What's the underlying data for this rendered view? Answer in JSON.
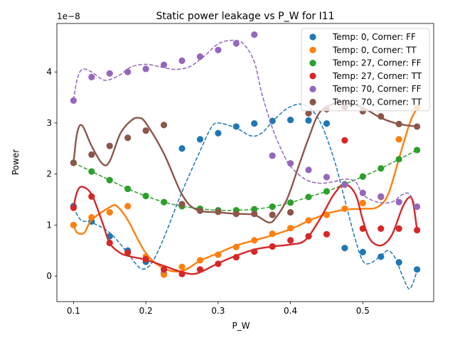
{
  "chart_data": {
    "type": "scatter",
    "title": "Static power leakage vs P_W for I11",
    "xlabel": "P_W",
    "ylabel": "Power",
    "y_multiplier_label": "1e−8",
    "xlim": [
      0.077,
      0.598
    ],
    "ylim": [
      -0.5,
      4.95
    ],
    "x_ticks": [
      0.1,
      0.2,
      0.3,
      0.4,
      0.5
    ],
    "x_tick_labels": [
      "0.1",
      "0.2",
      "0.3",
      "0.4",
      "0.5"
    ],
    "y_ticks": [
      0,
      1,
      2,
      3,
      4
    ],
    "y_tick_labels": [
      "0",
      "1",
      "2",
      "3",
      "4"
    ],
    "legend_position": "upper right",
    "grid": false,
    "series": [
      {
        "name": "Temp: 0, Corner: FF",
        "color": "#1f77b4",
        "line_style": "dashed",
        "x": [
          0.1,
          0.125,
          0.15,
          0.175,
          0.2,
          0.225,
          0.25,
          0.275,
          0.3,
          0.325,
          0.35,
          0.375,
          0.4,
          0.425,
          0.45,
          0.475,
          0.5,
          0.525,
          0.55,
          0.575
        ],
        "y": [
          1.37,
          1.07,
          0.78,
          0.5,
          0.28,
          0.05,
          2.5,
          2.68,
          2.8,
          2.93,
          2.99,
          3.04,
          3.06,
          3.05,
          2.99,
          0.55,
          0.47,
          0.38,
          0.27,
          0.13
        ],
        "curve": [
          [
            0.1,
            1.35
          ],
          [
            0.11,
            1.1
          ],
          [
            0.125,
            1.05
          ],
          [
            0.15,
            0.85
          ],
          [
            0.175,
            0.45
          ],
          [
            0.19,
            0.18
          ],
          [
            0.2,
            0.15
          ],
          [
            0.21,
            0.3
          ],
          [
            0.225,
            0.75
          ],
          [
            0.25,
            1.65
          ],
          [
            0.275,
            2.45
          ],
          [
            0.29,
            2.9
          ],
          [
            0.3,
            3.0
          ],
          [
            0.325,
            2.9
          ],
          [
            0.345,
            2.75
          ],
          [
            0.36,
            2.8
          ],
          [
            0.38,
            3.1
          ],
          [
            0.4,
            3.32
          ],
          [
            0.42,
            3.35
          ],
          [
            0.44,
            3.05
          ],
          [
            0.46,
            2.3
          ],
          [
            0.475,
            1.5
          ],
          [
            0.49,
            0.7
          ],
          [
            0.5,
            0.3
          ],
          [
            0.51,
            0.25
          ],
          [
            0.525,
            0.4
          ],
          [
            0.535,
            0.5
          ],
          [
            0.545,
            0.35
          ],
          [
            0.555,
            0.0
          ],
          [
            0.565,
            -0.25
          ],
          [
            0.575,
            0.1
          ]
        ]
      },
      {
        "name": "Temp: 0, Corner: TT",
        "color": "#ff7f0e",
        "line_style": "solid",
        "x": [
          0.1,
          0.125,
          0.15,
          0.175,
          0.2,
          0.225,
          0.25,
          0.275,
          0.3,
          0.325,
          0.35,
          0.375,
          0.4,
          0.425,
          0.45,
          0.475,
          0.5,
          0.525,
          0.55,
          0.575
        ],
        "y": [
          1.0,
          1.15,
          1.25,
          1.37,
          0.38,
          0.03,
          0.18,
          0.31,
          0.42,
          0.57,
          0.7,
          0.83,
          0.94,
          1.09,
          1.2,
          1.32,
          1.43,
          1.55,
          2.68,
          3.3
        ],
        "curve": [
          [
            0.1,
            1.0
          ],
          [
            0.105,
            0.85
          ],
          [
            0.115,
            0.85
          ],
          [
            0.125,
            1.1
          ],
          [
            0.15,
            1.35
          ],
          [
            0.16,
            1.37
          ],
          [
            0.175,
            1.1
          ],
          [
            0.2,
            0.45
          ],
          [
            0.225,
            0.15
          ],
          [
            0.25,
            0.1
          ],
          [
            0.275,
            0.3
          ],
          [
            0.3,
            0.45
          ],
          [
            0.325,
            0.6
          ],
          [
            0.35,
            0.7
          ],
          [
            0.375,
            0.8
          ],
          [
            0.4,
            0.92
          ],
          [
            0.425,
            1.08
          ],
          [
            0.45,
            1.22
          ],
          [
            0.475,
            1.3
          ],
          [
            0.5,
            1.32
          ],
          [
            0.52,
            1.35
          ],
          [
            0.535,
            1.6
          ],
          [
            0.55,
            2.3
          ],
          [
            0.565,
            3.0
          ],
          [
            0.575,
            3.3
          ]
        ]
      },
      {
        "name": "Temp: 27, Corner: FF",
        "color": "#2ca02c",
        "line_style": "dashed",
        "x": [
          0.1,
          0.125,
          0.15,
          0.175,
          0.2,
          0.225,
          0.25,
          0.275,
          0.3,
          0.325,
          0.35,
          0.375,
          0.4,
          0.425,
          0.45,
          0.475,
          0.5,
          0.525,
          0.55,
          0.575
        ],
        "y": [
          2.22,
          2.05,
          1.88,
          1.71,
          1.57,
          1.45,
          1.37,
          1.32,
          1.29,
          1.29,
          1.31,
          1.36,
          1.44,
          1.55,
          1.66,
          1.8,
          1.95,
          2.11,
          2.29,
          2.47
        ],
        "curve": [
          [
            0.1,
            2.22
          ],
          [
            0.125,
            2.05
          ],
          [
            0.15,
            1.88
          ],
          [
            0.175,
            1.71
          ],
          [
            0.2,
            1.57
          ],
          [
            0.225,
            1.45
          ],
          [
            0.25,
            1.37
          ],
          [
            0.275,
            1.32
          ],
          [
            0.3,
            1.29
          ],
          [
            0.325,
            1.29
          ],
          [
            0.35,
            1.31
          ],
          [
            0.375,
            1.36
          ],
          [
            0.4,
            1.44
          ],
          [
            0.425,
            1.55
          ],
          [
            0.45,
            1.66
          ],
          [
            0.475,
            1.8
          ],
          [
            0.5,
            1.95
          ],
          [
            0.525,
            2.11
          ],
          [
            0.55,
            2.29
          ],
          [
            0.575,
            2.47
          ]
        ]
      },
      {
        "name": "Temp: 27, Corner: TT",
        "color": "#d62728",
        "line_style": "solid",
        "x": [
          0.1,
          0.125,
          0.15,
          0.175,
          0.2,
          0.225,
          0.25,
          0.275,
          0.3,
          0.325,
          0.35,
          0.375,
          0.4,
          0.425,
          0.45,
          0.475,
          0.5,
          0.525,
          0.55,
          0.575
        ],
        "y": [
          1.34,
          1.56,
          0.65,
          0.46,
          0.33,
          0.13,
          0.04,
          0.13,
          0.24,
          0.37,
          0.48,
          0.58,
          0.7,
          0.78,
          0.82,
          2.66,
          0.93,
          0.93,
          0.93,
          0.9
        ],
        "curve": [
          [
            0.1,
            1.35
          ],
          [
            0.105,
            1.65
          ],
          [
            0.112,
            1.75
          ],
          [
            0.125,
            1.6
          ],
          [
            0.14,
            1.05
          ],
          [
            0.15,
            0.65
          ],
          [
            0.165,
            0.45
          ],
          [
            0.18,
            0.38
          ],
          [
            0.2,
            0.32
          ],
          [
            0.225,
            0.2
          ],
          [
            0.25,
            0.08
          ],
          [
            0.27,
            0.05
          ],
          [
            0.3,
            0.25
          ],
          [
            0.325,
            0.4
          ],
          [
            0.35,
            0.52
          ],
          [
            0.375,
            0.58
          ],
          [
            0.4,
            0.62
          ],
          [
            0.42,
            0.7
          ],
          [
            0.44,
            1.1
          ],
          [
            0.46,
            1.6
          ],
          [
            0.475,
            1.8
          ],
          [
            0.49,
            1.6
          ],
          [
            0.5,
            1.1
          ],
          [
            0.51,
            0.72
          ],
          [
            0.525,
            0.6
          ],
          [
            0.54,
            0.8
          ],
          [
            0.555,
            1.35
          ],
          [
            0.565,
            1.55
          ],
          [
            0.57,
            1.4
          ],
          [
            0.575,
            0.9
          ]
        ]
      },
      {
        "name": "Temp: 70, Corner: FF",
        "color": "#9467bd",
        "line_style": "dashed",
        "x": [
          0.1,
          0.125,
          0.15,
          0.175,
          0.2,
          0.225,
          0.25,
          0.275,
          0.3,
          0.325,
          0.35,
          0.375,
          0.4,
          0.425,
          0.45,
          0.475,
          0.5,
          0.525,
          0.55,
          0.575
        ],
        "y": [
          3.44,
          3.9,
          3.97,
          4.0,
          4.06,
          4.14,
          4.22,
          4.3,
          4.43,
          4.56,
          4.73,
          2.36,
          2.21,
          2.08,
          1.94,
          1.79,
          1.63,
          1.56,
          1.45,
          1.36
        ],
        "curve": [
          [
            0.1,
            3.45
          ],
          [
            0.105,
            3.85
          ],
          [
            0.112,
            4.05
          ],
          [
            0.125,
            4.0
          ],
          [
            0.14,
            3.85
          ],
          [
            0.15,
            3.85
          ],
          [
            0.165,
            3.95
          ],
          [
            0.18,
            4.1
          ],
          [
            0.2,
            4.15
          ],
          [
            0.22,
            4.1
          ],
          [
            0.24,
            4.05
          ],
          [
            0.26,
            4.1
          ],
          [
            0.28,
            4.3
          ],
          [
            0.3,
            4.55
          ],
          [
            0.32,
            4.62
          ],
          [
            0.335,
            4.55
          ],
          [
            0.35,
            4.2
          ],
          [
            0.36,
            3.6
          ],
          [
            0.375,
            2.9
          ],
          [
            0.39,
            2.4
          ],
          [
            0.4,
            2.15
          ],
          [
            0.42,
            1.9
          ],
          [
            0.44,
            1.82
          ],
          [
            0.46,
            1.85
          ],
          [
            0.475,
            1.9
          ],
          [
            0.49,
            1.85
          ],
          [
            0.5,
            1.6
          ],
          [
            0.52,
            1.45
          ],
          [
            0.54,
            1.45
          ],
          [
            0.555,
            1.6
          ],
          [
            0.565,
            1.6
          ],
          [
            0.575,
            1.3
          ]
        ]
      },
      {
        "name": "Temp: 70, Corner: TT",
        "color": "#8c564b",
        "line_style": "solid",
        "x": [
          0.1,
          0.125,
          0.15,
          0.175,
          0.2,
          0.225,
          0.25,
          0.275,
          0.3,
          0.325,
          0.35,
          0.375,
          0.4,
          0.425,
          0.45,
          0.475,
          0.5,
          0.525,
          0.55,
          0.575
        ],
        "y": [
          2.22,
          2.38,
          2.55,
          2.71,
          2.85,
          2.96,
          1.41,
          1.28,
          1.26,
          1.22,
          1.22,
          1.2,
          1.25,
          3.19,
          3.27,
          3.31,
          3.23,
          3.13,
          2.98,
          2.93
        ],
        "curve": [
          [
            0.1,
            2.22
          ],
          [
            0.105,
            2.8
          ],
          [
            0.112,
            2.95
          ],
          [
            0.125,
            2.55
          ],
          [
            0.14,
            2.2
          ],
          [
            0.15,
            2.25
          ],
          [
            0.165,
            2.8
          ],
          [
            0.18,
            3.05
          ],
          [
            0.19,
            3.1
          ],
          [
            0.2,
            3.0
          ],
          [
            0.225,
            2.4
          ],
          [
            0.25,
            1.6
          ],
          [
            0.27,
            1.3
          ],
          [
            0.3,
            1.25
          ],
          [
            0.325,
            1.22
          ],
          [
            0.35,
            1.2
          ],
          [
            0.37,
            1.05
          ],
          [
            0.38,
            1.15
          ],
          [
            0.395,
            1.5
          ],
          [
            0.41,
            2.1
          ],
          [
            0.425,
            2.7
          ],
          [
            0.44,
            3.2
          ],
          [
            0.46,
            3.38
          ],
          [
            0.475,
            3.4
          ],
          [
            0.5,
            3.3
          ],
          [
            0.525,
            3.1
          ],
          [
            0.55,
            2.98
          ],
          [
            0.575,
            2.93
          ]
        ]
      }
    ]
  }
}
